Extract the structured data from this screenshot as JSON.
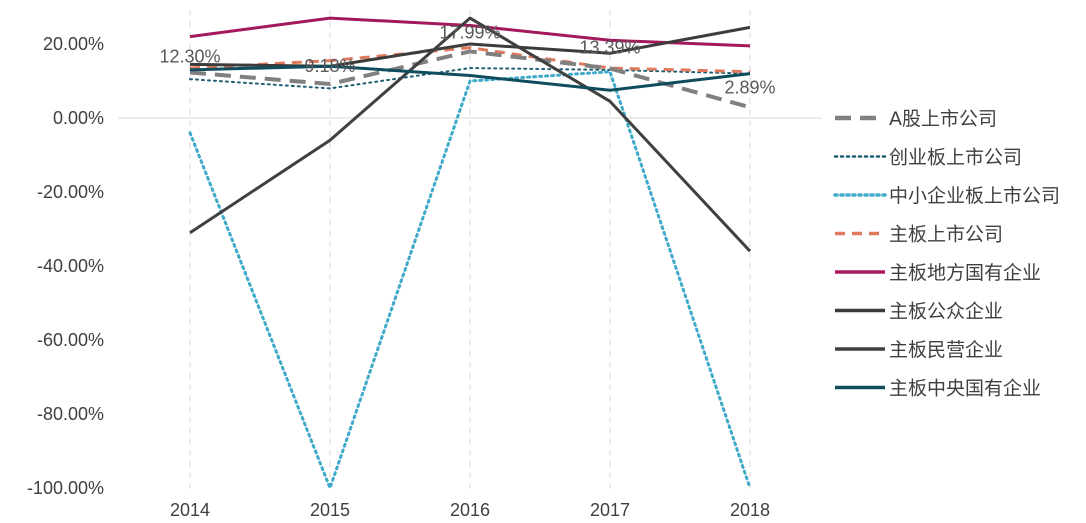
{
  "chart_data": {
    "type": "line",
    "title": "",
    "xlabel": "",
    "ylabel": "",
    "categories": [
      "2014",
      "2015",
      "2016",
      "2017",
      "2018"
    ],
    "ylim": [
      -100,
      30
    ],
    "yticks": [
      20,
      0,
      -20,
      -40,
      -60,
      -80,
      -100
    ],
    "ytick_labels": [
      "20.00%",
      "0.00%",
      "-20.00%",
      "-40.00%",
      "-60.00%",
      "-80.00%",
      "-100.00%"
    ],
    "grid": "vertical dashed lines at each category, horizontal line at 0",
    "legend_position": "right",
    "series": [
      {
        "name": "A股上市公司",
        "values": [
          12.3,
          9.18,
          17.99,
          13.39,
          2.89
        ],
        "color": "#808080",
        "style": "dashed-long",
        "width": 4
      },
      {
        "name": "创业板上市公司",
        "values": [
          10.5,
          8.0,
          13.5,
          13.0,
          12.0
        ],
        "color": "#1f5f73",
        "style": "dotted",
        "width": 2
      },
      {
        "name": "中小企业板上市公司",
        "values": [
          -4.0,
          -100.0,
          10.0,
          12.5,
          -100.0
        ],
        "color": "#3fa9c9",
        "style": "dotted",
        "width": 3
      },
      {
        "name": "主板上市公司",
        "values": [
          13.5,
          15.5,
          19.0,
          13.5,
          12.5
        ],
        "color": "#e07a5f",
        "style": "dashed",
        "width": 3
      },
      {
        "name": "主板地方国有企业",
        "values": [
          22.0,
          27.0,
          25.0,
          21.0,
          19.5
        ],
        "color": "#a3195b",
        "style": "solid",
        "width": 3
      },
      {
        "name": "主板公众企业",
        "values": [
          14.5,
          14.0,
          20.0,
          17.5,
          24.5
        ],
        "color": "#3c3c3c",
        "style": "solid",
        "width": 3
      },
      {
        "name": "主板民营企业",
        "values": [
          -31.0,
          -6.0,
          27.0,
          4.5,
          -36.0
        ],
        "color": "#404040",
        "style": "solid",
        "width": 3
      },
      {
        "name": "主板中央国有企业",
        "values": [
          13.0,
          14.0,
          11.5,
          7.5,
          12.0
        ],
        "color": "#0f4c5c",
        "style": "solid",
        "width": 3
      }
    ],
    "data_labels": [
      {
        "series": "A股上市公司",
        "category": "2014",
        "text": "12.30%"
      },
      {
        "series": "A股上市公司",
        "category": "2015",
        "text": "9.18%"
      },
      {
        "series": "A股上市公司",
        "category": "2016",
        "text": "17.99%"
      },
      {
        "series": "A股上市公司",
        "category": "2017",
        "text": "13.39%"
      },
      {
        "series": "A股上市公司",
        "category": "2018",
        "text": "2.89%"
      }
    ]
  }
}
